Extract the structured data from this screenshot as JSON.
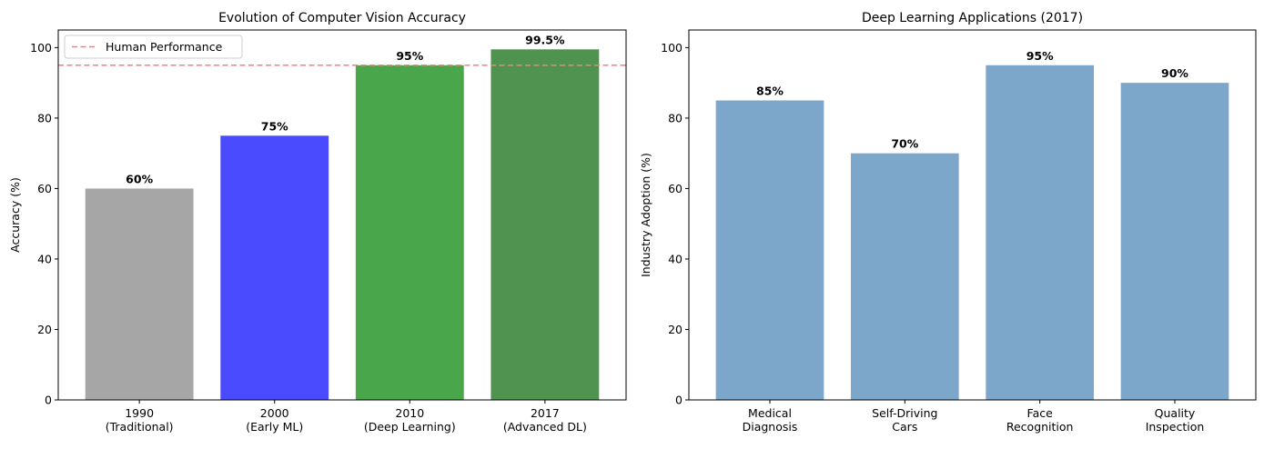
{
  "chart_data": [
    {
      "type": "bar",
      "title": "Evolution of Computer Vision Accuracy",
      "xlabel": "",
      "ylabel": "Accuracy (%)",
      "ylim": [
        0,
        105
      ],
      "yticks": [
        0,
        20,
        40,
        60,
        80,
        100
      ],
      "categories": [
        [
          "1990",
          "(Traditional)"
        ],
        [
          "2000",
          "(Early ML)"
        ],
        [
          "2010",
          "(Deep Learning)"
        ],
        [
          "2017",
          "(Advanced DL)"
        ]
      ],
      "values": [
        60,
        75,
        95,
        99.5
      ],
      "value_labels": [
        "60%",
        "75%",
        "95%",
        "99.5%"
      ],
      "bar_colors": [
        "#a6a6a6",
        "#4a4aff",
        "#4aa64a",
        "#4f934f"
      ],
      "reference_line": {
        "name": "Human Performance",
        "value": 95,
        "color": "#ff7b7b",
        "style": "dashed"
      },
      "legend": {
        "placement": "top-left",
        "entries": [
          "Human Performance"
        ]
      },
      "grid": false
    },
    {
      "type": "bar",
      "title": "Deep Learning Applications (2017)",
      "xlabel": "",
      "ylabel": "Industry Adoption (%)",
      "ylim": [
        0,
        105
      ],
      "yticks": [
        0,
        20,
        40,
        60,
        80,
        100
      ],
      "categories": [
        [
          "Medical",
          "Diagnosis"
        ],
        [
          "Self-Driving",
          "Cars"
        ],
        [
          "Face",
          "Recognition"
        ],
        [
          "Quality",
          "Inspection"
        ]
      ],
      "values": [
        85,
        70,
        95,
        90
      ],
      "value_labels": [
        "85%",
        "70%",
        "95%",
        "90%"
      ],
      "bar_colors": [
        "#7ca6ca",
        "#7ca6ca",
        "#7ca6ca",
        "#7ca6ca"
      ],
      "grid": false
    }
  ]
}
